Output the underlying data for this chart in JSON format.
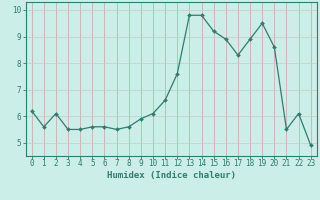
{
  "x": [
    0,
    1,
    2,
    3,
    4,
    5,
    6,
    7,
    8,
    9,
    10,
    11,
    12,
    13,
    14,
    15,
    16,
    17,
    18,
    19,
    20,
    21,
    22,
    23
  ],
  "y": [
    6.2,
    5.6,
    6.1,
    5.5,
    5.5,
    5.6,
    5.6,
    5.5,
    5.6,
    5.9,
    6.1,
    6.6,
    7.6,
    9.8,
    9.8,
    9.2,
    8.9,
    8.3,
    8.9,
    9.5,
    8.6,
    5.5,
    6.1,
    4.9
  ],
  "line_color": "#2e7d6e",
  "marker": "D",
  "marker_size": 2.0,
  "line_width": 0.9,
  "xlabel": "Humidex (Indice chaleur)",
  "ylim": [
    4.5,
    10.3
  ],
  "xlim": [
    -0.5,
    23.5
  ],
  "yticks": [
    5,
    6,
    7,
    8,
    9,
    10
  ],
  "xticks": [
    0,
    1,
    2,
    3,
    4,
    5,
    6,
    7,
    8,
    9,
    10,
    11,
    12,
    13,
    14,
    15,
    16,
    17,
    18,
    19,
    20,
    21,
    22,
    23
  ],
  "bg_color": "#cceee8",
  "grid_color": "#b8d8d4",
  "tick_color": "#2e7d6e",
  "tick_fontsize": 5.5,
  "xlabel_fontsize": 6.5
}
